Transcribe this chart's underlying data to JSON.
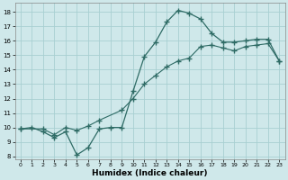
{
  "xlabel": "Humidex (Indice chaleur)",
  "ylabel": "",
  "bg_color": "#cfe8ea",
  "grid_color": "#a8cfd2",
  "line_color": "#2e6b65",
  "xlim": [
    -0.5,
    23.5
  ],
  "ylim": [
    7.8,
    18.6
  ],
  "xticks": [
    0,
    1,
    2,
    3,
    4,
    5,
    6,
    7,
    8,
    9,
    10,
    11,
    12,
    13,
    14,
    15,
    16,
    17,
    18,
    19,
    20,
    21,
    22,
    23
  ],
  "yticks": [
    8,
    9,
    10,
    11,
    12,
    13,
    14,
    15,
    16,
    17,
    18
  ],
  "line1_x": [
    0,
    1,
    2,
    3,
    4,
    5,
    6,
    7,
    8,
    9,
    10,
    11,
    12,
    13,
    14,
    15,
    16,
    17,
    18,
    19,
    20,
    21,
    22,
    23
  ],
  "line1_y": [
    9.9,
    10.0,
    9.7,
    9.3,
    9.7,
    8.1,
    8.6,
    9.9,
    10.0,
    10.0,
    12.5,
    14.9,
    15.9,
    17.3,
    18.1,
    17.9,
    17.5,
    16.5,
    15.9,
    15.9,
    16.0,
    16.1,
    16.1,
    14.6
  ],
  "line2_x": [
    0,
    2,
    3,
    4,
    5,
    6,
    7,
    9,
    10,
    11,
    12,
    13,
    14,
    15,
    16,
    17,
    18,
    19,
    20,
    21,
    22,
    23
  ],
  "line2_y": [
    9.9,
    9.9,
    9.5,
    10.0,
    9.8,
    10.1,
    10.5,
    11.2,
    12.0,
    13.0,
    13.6,
    14.2,
    14.6,
    14.8,
    15.6,
    15.7,
    15.5,
    15.3,
    15.6,
    15.7,
    15.8,
    14.6
  ]
}
